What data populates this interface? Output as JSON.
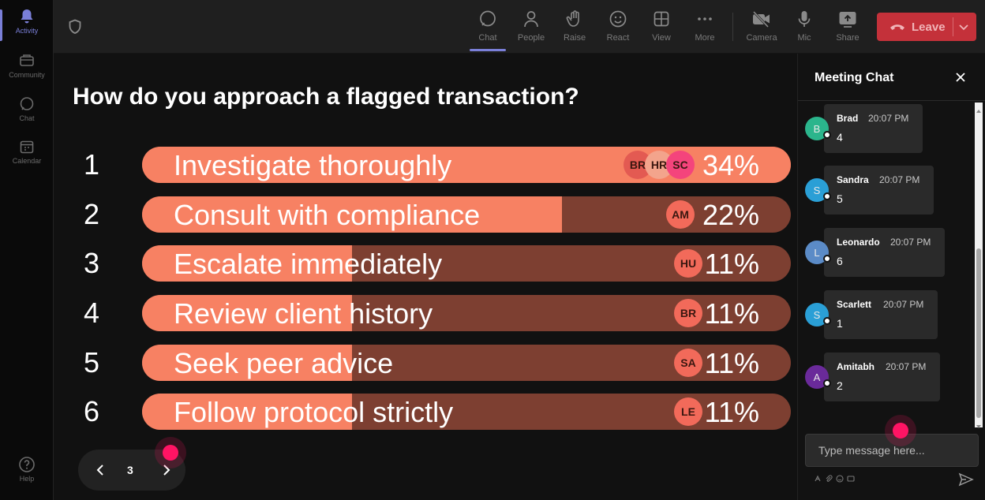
{
  "rail": {
    "items": [
      {
        "label": "Activity",
        "icon": "bell-icon"
      },
      {
        "label": "Community",
        "icon": "community-icon"
      },
      {
        "label": "Chat",
        "icon": "chat-icon"
      },
      {
        "label": "Calendar",
        "icon": "calendar-icon"
      }
    ],
    "help_label": "Help"
  },
  "toolbar": {
    "items": [
      {
        "label": "Chat",
        "icon": "chat-icon"
      },
      {
        "label": "People",
        "icon": "people-icon"
      },
      {
        "label": "Raise",
        "icon": "hand-icon"
      },
      {
        "label": "React",
        "icon": "smile-icon"
      },
      {
        "label": "View",
        "icon": "grid-icon"
      },
      {
        "label": "More",
        "icon": "more-icon"
      },
      {
        "label": "Camera",
        "icon": "camera-off-icon"
      },
      {
        "label": "Mic",
        "icon": "mic-icon"
      },
      {
        "label": "Share",
        "icon": "share-icon"
      }
    ],
    "leave_label": "Leave"
  },
  "poll": {
    "question": "How do you approach a flagged transaction?",
    "options": [
      {
        "num": "1",
        "label": "Investigate thoroughly",
        "pct": "34%",
        "value": 34,
        "avatars": [
          "BR",
          "HR",
          "SC"
        ]
      },
      {
        "num": "2",
        "label": "Consult with compliance",
        "pct": "22%",
        "value": 22,
        "avatars": [
          "AM"
        ]
      },
      {
        "num": "3",
        "label": "Escalate immediately",
        "pct": "11%",
        "value": 11,
        "avatars": [
          "HU"
        ]
      },
      {
        "num": "4",
        "label": "Review client history",
        "pct": "11%",
        "value": 11,
        "avatars": [
          "BR"
        ]
      },
      {
        "num": "5",
        "label": "Seek peer advice",
        "pct": "11%",
        "value": 11,
        "avatars": [
          "SA"
        ]
      },
      {
        "num": "6",
        "label": "Follow protocol strictly",
        "pct": "11%",
        "value": 11,
        "avatars": [
          "LE"
        ]
      }
    ],
    "page": "3"
  },
  "chat": {
    "title": "Meeting Chat",
    "messages": [
      {
        "initial": "B",
        "name": "Brad",
        "time": "20:07 PM",
        "text": "4",
        "color": "#2bb58c"
      },
      {
        "initial": "S",
        "name": "Sandra",
        "time": "20:07 PM",
        "text": "5",
        "color": "#2a9fd6"
      },
      {
        "initial": "L",
        "name": "Leonardo",
        "time": "20:07 PM",
        "text": "6",
        "color": "#5b8bc7"
      },
      {
        "initial": "S",
        "name": "Scarlett",
        "time": "20:07 PM",
        "text": "1",
        "color": "#2a9fd6"
      },
      {
        "initial": "A",
        "name": "Amitabh",
        "time": "20:07 PM",
        "text": "2",
        "color": "#6a2a9a"
      }
    ],
    "input_placeholder": "Type message here..."
  },
  "colors": {
    "bar_fill": "#f78163",
    "bar_track": "#7d3f31",
    "accent": "#7a7fd8",
    "leave": "#c4313a"
  }
}
